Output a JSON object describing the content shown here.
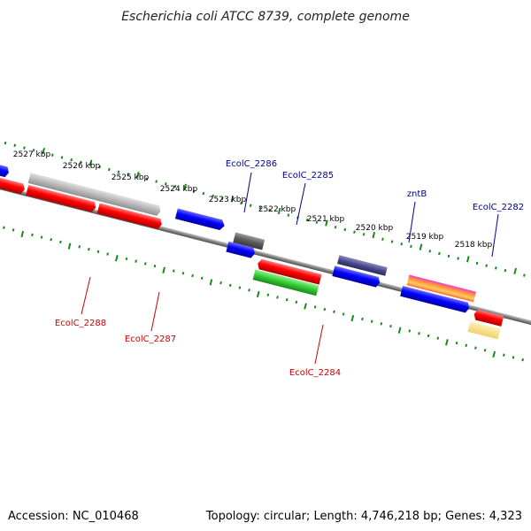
{
  "title": "Escherichia coli ATCC 8739, complete genome",
  "footer": {
    "accession": "Accession: NC_010468",
    "stats": "Topology: circular; Length: 4,746,218 bp; Genes: 4,323"
  },
  "ticks": [
    "2527 kbp",
    "2526 kbp",
    "2525 kbp",
    "2524 kbp",
    "2523 kbp",
    "2522 kbp",
    "2521 kbp",
    "2520 kbp",
    "2519 kbp",
    "2518 kbp"
  ],
  "genes": [
    {
      "label": "EcolC_2286",
      "color": "#00008b"
    },
    {
      "label": "EcolC_2285",
      "color": "#00008b"
    },
    {
      "label": "zntB",
      "color": "#00008b"
    },
    {
      "label": "EcolC_2282",
      "color": "#00008b"
    },
    {
      "label": "EcolC_2288",
      "color": "#cc0000"
    },
    {
      "label": "EcolC_2287",
      "color": "#cc0000"
    },
    {
      "label": "EcolC_2284",
      "color": "#cc0000"
    }
  ],
  "colors": {
    "backbone": "#808080",
    "tick": "#1a8a1a",
    "forward_cds": "#ff0000",
    "reverse_cds": "#0000ff",
    "pseudo": "#b0b0b0",
    "rna": "#33cc33",
    "other": "#5a5a9a"
  }
}
